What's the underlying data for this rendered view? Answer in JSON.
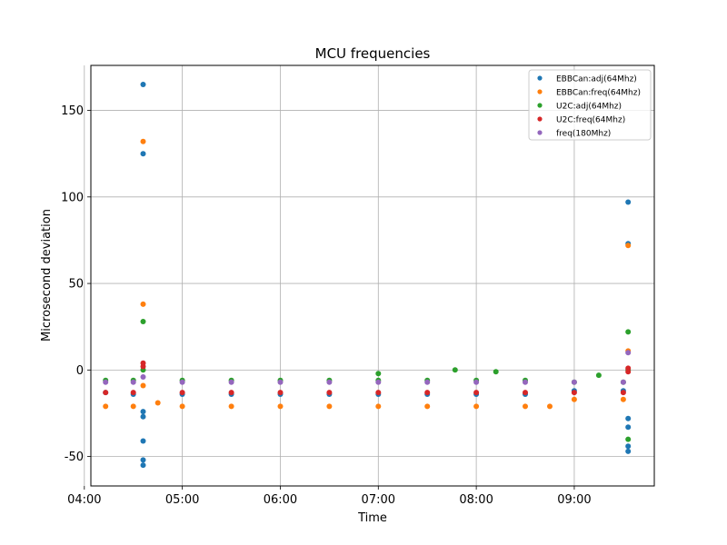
{
  "chart_data": {
    "type": "scatter",
    "title": "MCU frequencies",
    "xlabel": "Time",
    "ylabel": "Microsecond deviation",
    "x_unit": "time (HH:MM)",
    "xlim": [
      "04:04",
      "09:49"
    ],
    "ylim": [
      -67,
      176
    ],
    "xticks": [
      "04:00",
      "05:00",
      "06:00",
      "07:00",
      "08:00",
      "09:00"
    ],
    "yticks": [
      -50,
      0,
      50,
      100,
      150
    ],
    "grid": true,
    "legend": "top-right",
    "series": [
      {
        "name": "EBBCan:adj(64Mhz)",
        "color": "#1f77b4",
        "points": [
          [
            "04:13",
            -13
          ],
          [
            "04:30",
            -14
          ],
          [
            "05:00",
            -14
          ],
          [
            "05:30",
            -14
          ],
          [
            "06:00",
            -14
          ],
          [
            "06:30",
            -14
          ],
          [
            "07:00",
            -14
          ],
          [
            "07:30",
            -14
          ],
          [
            "08:00",
            -14
          ],
          [
            "08:30",
            -14
          ],
          [
            "09:00",
            -12
          ],
          [
            "09:30",
            -12
          ],
          [
            "04:36",
            165
          ],
          [
            "04:36",
            125
          ],
          [
            "04:36",
            -24
          ],
          [
            "04:36",
            -27
          ],
          [
            "04:36",
            -41
          ],
          [
            "04:36",
            -52
          ],
          [
            "04:36",
            -55
          ],
          [
            "09:33",
            97
          ],
          [
            "09:33",
            73
          ],
          [
            "09:33",
            -28
          ],
          [
            "09:33",
            -33
          ],
          [
            "09:33",
            -44
          ],
          [
            "09:33",
            -47
          ]
        ]
      },
      {
        "name": "EBBCan:freq(64Mhz)",
        "color": "#ff7f0e",
        "points": [
          [
            "04:13",
            -21
          ],
          [
            "04:30",
            -21
          ],
          [
            "04:45",
            -19
          ],
          [
            "05:00",
            -21
          ],
          [
            "05:30",
            -21
          ],
          [
            "06:00",
            -21
          ],
          [
            "06:30",
            -21
          ],
          [
            "07:00",
            -21
          ],
          [
            "07:30",
            -21
          ],
          [
            "08:00",
            -21
          ],
          [
            "08:30",
            -21
          ],
          [
            "08:45",
            -21
          ],
          [
            "09:00",
            -17
          ],
          [
            "09:30",
            -17
          ],
          [
            "04:36",
            132
          ],
          [
            "04:36",
            38
          ],
          [
            "04:36",
            -9
          ],
          [
            "09:33",
            72
          ],
          [
            "09:33",
            11
          ]
        ]
      },
      {
        "name": "U2C:adj(64Mhz)",
        "color": "#2ca02c",
        "points": [
          [
            "04:13",
            -6
          ],
          [
            "04:30",
            -6
          ],
          [
            "05:00",
            -6
          ],
          [
            "05:30",
            -6
          ],
          [
            "06:00",
            -6
          ],
          [
            "06:30",
            -6
          ],
          [
            "07:00",
            -6
          ],
          [
            "07:30",
            -6
          ],
          [
            "08:00",
            -6
          ],
          [
            "08:30",
            -6
          ],
          [
            "09:00",
            -7
          ],
          [
            "09:30",
            -7
          ],
          [
            "04:36",
            28
          ],
          [
            "04:36",
            0
          ],
          [
            "07:00",
            -2
          ],
          [
            "07:47",
            0
          ],
          [
            "08:12",
            -1
          ],
          [
            "09:15",
            -3
          ],
          [
            "09:33",
            22
          ],
          [
            "09:33",
            -40
          ],
          [
            "09:33",
            0
          ]
        ]
      },
      {
        "name": "U2C:freq(64Mhz)",
        "color": "#d62728",
        "points": [
          [
            "04:13",
            -13
          ],
          [
            "04:30",
            -13
          ],
          [
            "05:00",
            -13
          ],
          [
            "05:30",
            -13
          ],
          [
            "06:00",
            -13
          ],
          [
            "06:30",
            -13
          ],
          [
            "07:00",
            -13
          ],
          [
            "07:30",
            -13
          ],
          [
            "08:00",
            -13
          ],
          [
            "08:30",
            -13
          ],
          [
            "09:00",
            -13
          ],
          [
            "09:30",
            -13
          ],
          [
            "04:36",
            4
          ],
          [
            "04:36",
            2
          ],
          [
            "09:33",
            1
          ],
          [
            "09:33",
            -1
          ]
        ]
      },
      {
        "name": "freq(180Mhz)",
        "color": "#9467bd",
        "points": [
          [
            "04:13",
            -7
          ],
          [
            "04:30",
            -7
          ],
          [
            "05:00",
            -7
          ],
          [
            "05:30",
            -7
          ],
          [
            "06:00",
            -7
          ],
          [
            "06:30",
            -7
          ],
          [
            "07:00",
            -7
          ],
          [
            "07:30",
            -7
          ],
          [
            "08:00",
            -7
          ],
          [
            "08:30",
            -7
          ],
          [
            "09:00",
            -7
          ],
          [
            "09:30",
            -7
          ],
          [
            "04:36",
            -4
          ],
          [
            "09:33",
            10
          ]
        ]
      }
    ]
  }
}
